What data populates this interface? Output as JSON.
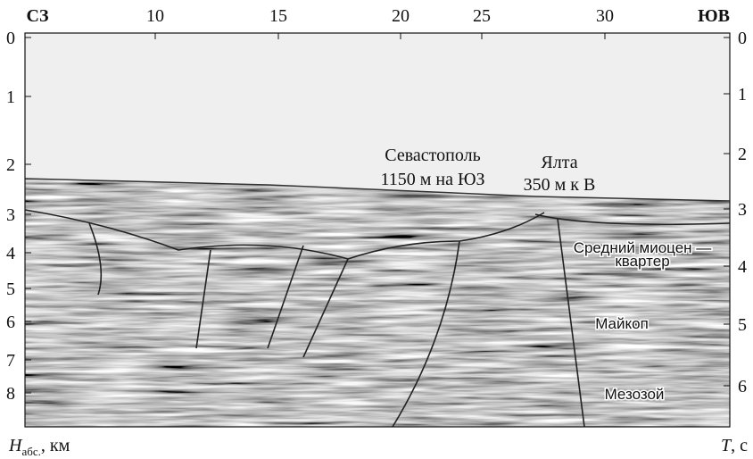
{
  "header": {
    "left": "СЗ",
    "right": "ЮВ"
  },
  "top_axis": [
    10,
    15,
    20,
    25,
    30
  ],
  "left_axis": [
    0,
    1,
    2,
    3,
    4,
    5,
    6,
    7,
    8
  ],
  "right_axis": [
    0,
    1,
    2,
    3,
    4,
    5,
    6
  ],
  "annotations": [
    {
      "lines": [
        "Севастополь",
        "1150 м на ЮЗ"
      ]
    },
    {
      "lines": [
        "Ялта",
        "350 м к В"
      ]
    },
    {
      "lines": [
        "Средний миоцен —",
        "квартер"
      ]
    },
    {
      "lines": [
        "Майкоп"
      ]
    },
    {
      "lines": [
        "Мезозой"
      ]
    }
  ],
  "left_axis_title": {
    "symbol": "H",
    "subscript": "абс.",
    "unit": ", км"
  },
  "right_axis_title": {
    "symbol": "T",
    "unit": ", с"
  }
}
